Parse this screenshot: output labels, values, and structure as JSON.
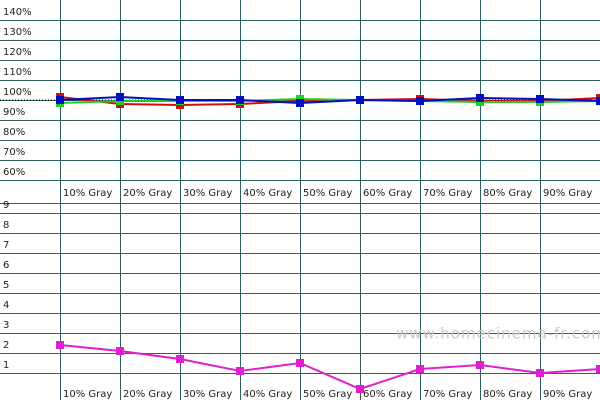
{
  "chart_data": [
    {
      "type": "line",
      "categories": [
        "10% Gray",
        "20% Gray",
        "30% Gray",
        "40% Gray",
        "50% Gray",
        "60% Gray",
        "70% Gray",
        "80% Gray",
        "90% Gray",
        null
      ],
      "series": [
        {
          "color": "#d01010",
          "values": [
            101.5,
            98,
            97.5,
            98,
            99.5,
            100,
            100.5,
            99.5,
            99.5,
            101
          ]
        },
        {
          "color": "#20d020",
          "values": [
            98.5,
            99.5,
            99.5,
            99.5,
            100.5,
            100,
            99.5,
            99,
            99,
            99.5
          ]
        },
        {
          "color": "#0010c0",
          "values": [
            100,
            101.5,
            100,
            100,
            98.5,
            100,
            99.5,
            101,
            100.5,
            99.5
          ]
        }
      ],
      "ylim": [
        59,
        150
      ],
      "yticks": [
        {
          "value": 60,
          "label": "60%"
        },
        {
          "value": 70,
          "label": "70%"
        },
        {
          "value": 80,
          "label": "80%"
        },
        {
          "value": 90,
          "label": "90%"
        },
        {
          "value": 100,
          "label": "100%"
        },
        {
          "value": 110,
          "label": "110%"
        },
        {
          "value": 120,
          "label": "120%"
        },
        {
          "value": 130,
          "label": "130%"
        },
        {
          "value": 140,
          "label": "140%"
        }
      ],
      "reference": 100,
      "grid": true
    },
    {
      "type": "line",
      "categories": [
        "10% Gray",
        "20% Gray",
        "30% Gray",
        "40% Gray",
        "50% Gray",
        "60% Gray",
        "70% Gray",
        "80% Gray",
        "90% Gray",
        null
      ],
      "series": [
        {
          "color": "#e020d0",
          "values": [
            2.4,
            2.1,
            1.7,
            1.1,
            1.5,
            0.2,
            1.2,
            1.4,
            1.0,
            1.2
          ]
        }
      ],
      "ylim": [
        0,
        10
      ],
      "yticks": [
        1,
        2,
        3,
        4,
        5,
        6,
        7,
        8,
        9
      ],
      "grid": true,
      "watermark": "www.homecinema-fr.com"
    }
  ]
}
